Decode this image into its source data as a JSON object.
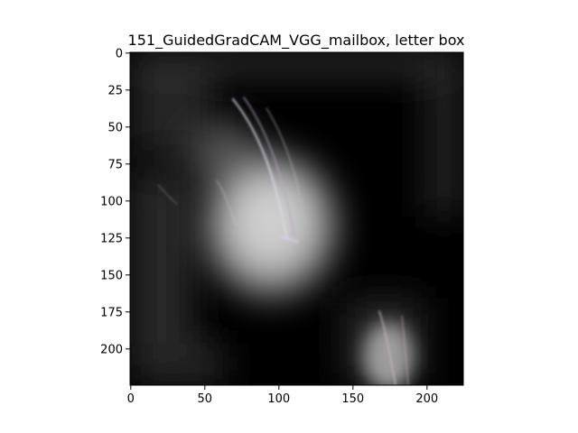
{
  "figure": {
    "title": "151_GuidedGradCAM_VGG_mailbox, letter box"
  },
  "image_axes": {
    "x_ticks": [
      0,
      50,
      100,
      150,
      200
    ],
    "y_ticks": [
      0,
      25,
      50,
      75,
      100,
      125,
      150,
      175,
      200
    ],
    "x_range": [
      0,
      224
    ],
    "y_range": [
      0,
      224
    ],
    "y_inverted": true,
    "grid": false
  },
  "colors": {
    "frame": "#000000",
    "background": "#ffffff",
    "image_base": "#000000"
  }
}
